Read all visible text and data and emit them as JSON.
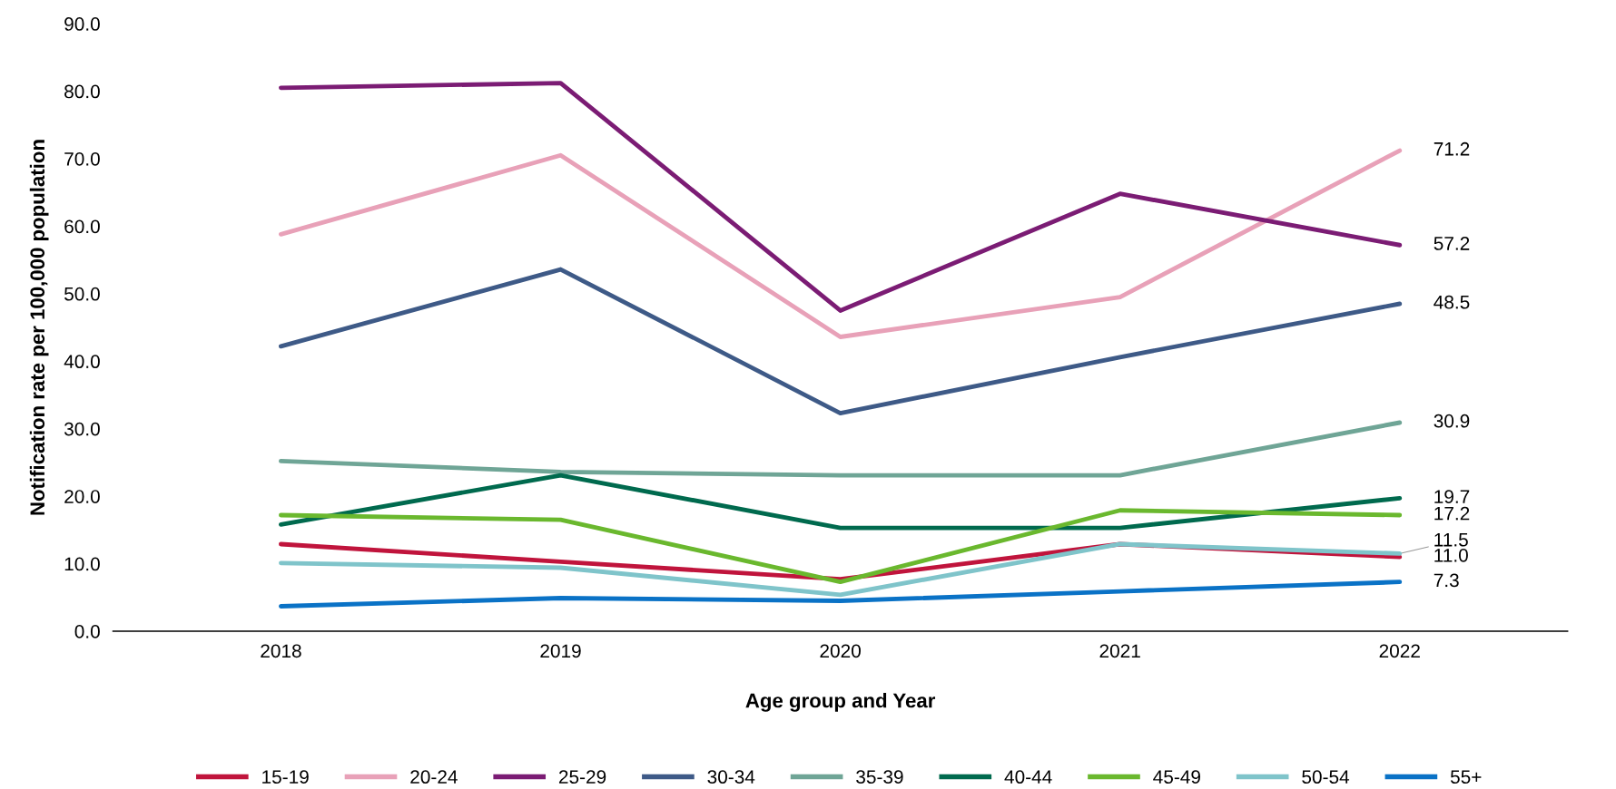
{
  "chart_data": {
    "type": "line",
    "xlabel": "Age group and Year",
    "ylabel": "Notification rate per 100,000 population",
    "categories": [
      "2018",
      "2019",
      "2020",
      "2021",
      "2022"
    ],
    "series": [
      {
        "name": "15-19",
        "color": "#c0143c",
        "values": [
          12.9,
          10.3,
          7.7,
          12.9,
          11.0
        ],
        "value_labels": [
          null,
          null,
          null,
          null,
          "11.0"
        ]
      },
      {
        "name": "20-24",
        "color": "#e8a1b8",
        "values": [
          58.8,
          70.5,
          43.6,
          49.5,
          71.2
        ],
        "value_labels": [
          null,
          null,
          null,
          null,
          "71.2"
        ]
      },
      {
        "name": "25-29",
        "color": "#7b1c74",
        "values": [
          80.5,
          81.2,
          47.5,
          64.8,
          57.2
        ],
        "value_labels": [
          null,
          null,
          null,
          null,
          "57.2"
        ]
      },
      {
        "name": "30-34",
        "color": "#3e5a87",
        "values": [
          42.2,
          53.6,
          32.3,
          40.6,
          48.5
        ],
        "value_labels": [
          null,
          null,
          null,
          null,
          "48.5"
        ]
      },
      {
        "name": "35-39",
        "color": "#6fa596",
        "values": [
          25.2,
          23.6,
          23.1,
          23.1,
          30.9
        ],
        "value_labels": [
          null,
          null,
          null,
          null,
          "30.9"
        ]
      },
      {
        "name": "40-44",
        "color": "#006a4e",
        "values": [
          15.8,
          23.1,
          15.3,
          15.3,
          19.7
        ],
        "value_labels": [
          null,
          null,
          null,
          null,
          "19.7"
        ]
      },
      {
        "name": "45-49",
        "color": "#6ab82e",
        "values": [
          17.2,
          16.5,
          7.3,
          17.9,
          17.2
        ],
        "value_labels": [
          null,
          null,
          null,
          null,
          "17.2"
        ]
      },
      {
        "name": "50-54",
        "color": "#7fc4ca",
        "values": [
          10.1,
          9.4,
          5.4,
          12.9,
          11.5
        ],
        "value_labels": [
          null,
          null,
          null,
          null,
          "11.5"
        ]
      },
      {
        "name": "55+",
        "color": "#0a72c6",
        "values": [
          3.7,
          4.9,
          4.5,
          5.9,
          7.3
        ],
        "value_labels": [
          null,
          null,
          null,
          null,
          "7.3"
        ]
      }
    ],
    "ylim": [
      0,
      90
    ],
    "yticks": [
      {
        "value": 0,
        "label": "0.0"
      },
      {
        "value": 10,
        "label": "10.0"
      },
      {
        "value": 20,
        "label": "20.0"
      },
      {
        "value": 30,
        "label": "30.0"
      },
      {
        "value": 40,
        "label": "40.0"
      },
      {
        "value": 50,
        "label": "50.0"
      },
      {
        "value": 60,
        "label": "60.0"
      },
      {
        "value": 70,
        "label": "70.0"
      },
      {
        "value": 80,
        "label": "80.0"
      },
      {
        "value": 90,
        "label": "90.0"
      }
    ],
    "grid": false,
    "legend": "bottom",
    "marker": "none",
    "line_style": "solid"
  }
}
